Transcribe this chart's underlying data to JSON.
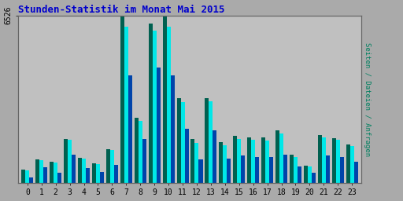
{
  "title": "Stunden-Statistik im Monat Mai 2015",
  "title_color": "#0000cc",
  "ylabel_right": "Seiten / Dateien / Anfragen",
  "ylabel_right_color": "#008060",
  "hours": [
    0,
    1,
    2,
    3,
    4,
    5,
    6,
    7,
    8,
    9,
    10,
    11,
    12,
    13,
    14,
    15,
    16,
    17,
    18,
    19,
    20,
    21,
    22,
    23
  ],
  "seiten": [
    530,
    900,
    820,
    1700,
    960,
    760,
    1300,
    6526,
    2550,
    6200,
    6526,
    3300,
    1700,
    3300,
    1580,
    1820,
    1780,
    1780,
    2050,
    1100,
    680,
    1860,
    1730,
    1480
  ],
  "dateien": [
    490,
    870,
    790,
    1670,
    930,
    740,
    1270,
    6100,
    2420,
    5950,
    6100,
    3150,
    1560,
    3180,
    1450,
    1700,
    1680,
    1650,
    1920,
    1020,
    630,
    1780,
    1680,
    1430
  ],
  "anfragen": [
    220,
    600,
    380,
    1100,
    570,
    420,
    700,
    4200,
    1700,
    4500,
    4200,
    2100,
    900,
    2050,
    950,
    1080,
    1010,
    1010,
    1100,
    640,
    390,
    1080,
    990,
    820
  ],
  "color_seiten": "#006050",
  "color_dateien": "#00e8e8",
  "color_anfragen": "#0044aa",
  "bg_color": "#aaaaaa",
  "plot_bg_color": "#c0c0c0",
  "grid_color": "#aaaaaa",
  "ylim": [
    0,
    6526
  ],
  "ytick_val": 6526,
  "bar_width": 0.28,
  "figsize": [
    5.12,
    2.56
  ],
  "dpi": 100
}
